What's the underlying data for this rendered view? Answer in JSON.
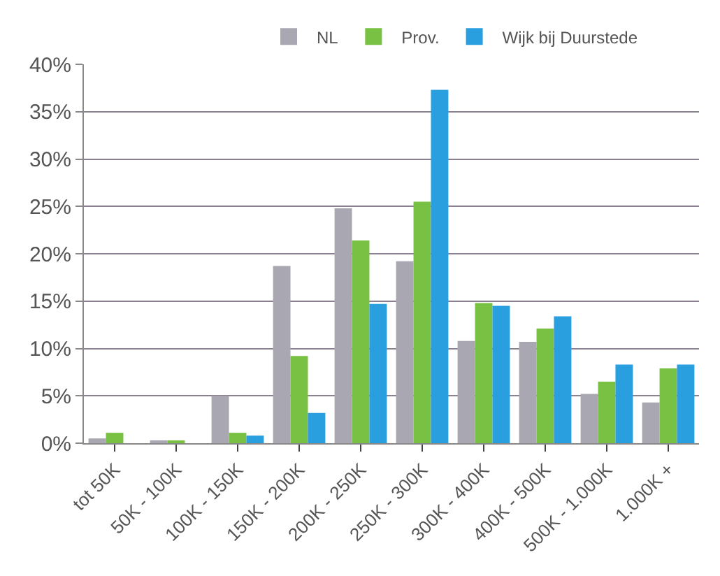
{
  "chart_data": {
    "type": "bar",
    "categories": [
      "tot 50K",
      "50K - 100K",
      "100K - 150K",
      "150K - 200K",
      "200K - 250K",
      "250K - 300K",
      "300K - 400K",
      "400K - 500K",
      "500K - 1.000K",
      "1.000K +"
    ],
    "series": [
      {
        "name": "NL",
        "color": "#a8a7b2",
        "values": [
          0.5,
          0.3,
          5,
          18.7,
          24.8,
          19.2,
          10.8,
          10.7,
          5.2,
          4.3
        ]
      },
      {
        "name": "Prov.",
        "color": "#78c143",
        "values": [
          1.1,
          0.2,
          1.1,
          9.2,
          21.4,
          25.5,
          14.8,
          12.1,
          6.5,
          7.9
        ]
      },
      {
        "name": "Wijk bij Duurstede",
        "color": "#2a9fe0",
        "values": [
          0,
          0,
          0.8,
          3.2,
          14.7,
          37.3,
          14.5,
          13.4,
          8.3,
          8.3
        ]
      }
    ],
    "ylim": [
      0,
      40
    ],
    "yticks": [
      {
        "value": 0,
        "label": "0%"
      },
      {
        "value": 5,
        "label": "5%"
      },
      {
        "value": 10,
        "label": "10%"
      },
      {
        "value": 15,
        "label": "15%"
      },
      {
        "value": 20,
        "label": "20%"
      },
      {
        "value": 25,
        "label": "25%"
      },
      {
        "value": 30,
        "label": "30%"
      },
      {
        "value": 35,
        "label": "35%"
      },
      {
        "value": 40,
        "label": "40%"
      }
    ],
    "grid": "y",
    "legend": "top"
  }
}
